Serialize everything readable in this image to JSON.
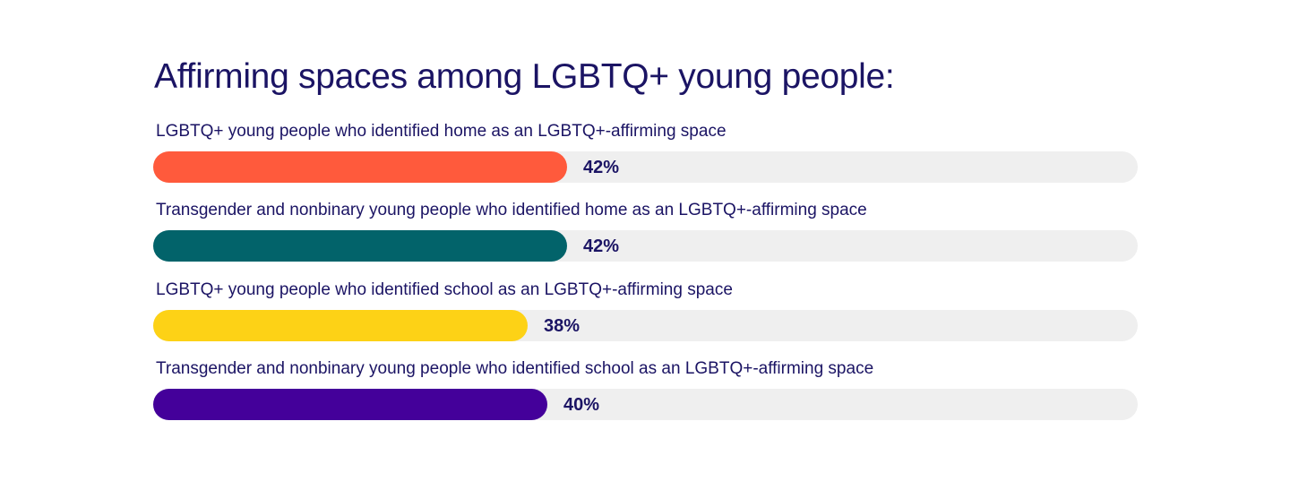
{
  "chart_data": {
    "type": "bar",
    "orientation": "horizontal",
    "title": "Affirming spaces among LGBTQ+ young people:",
    "xlim": [
      0,
      100
    ],
    "grid": false,
    "legend": "none",
    "categories": [
      "LGBTQ+ young people who identified home as an LGBTQ+-affirming space",
      "Transgender and nonbinary young people who identified home as an LGBTQ+-affirming space",
      "LGBTQ+ young people who identified school as an LGBTQ+-affirming space",
      "Transgender and nonbinary young people who identified school as an LGBTQ+-affirming space"
    ],
    "values": [
      42,
      42,
      38,
      40
    ],
    "value_labels": [
      "42%",
      "42%",
      "38%",
      "40%"
    ],
    "colors": [
      "#ff5a3c",
      "#02636a",
      "#fdd216",
      "#44009a"
    ],
    "track_color": "#efefef"
  }
}
